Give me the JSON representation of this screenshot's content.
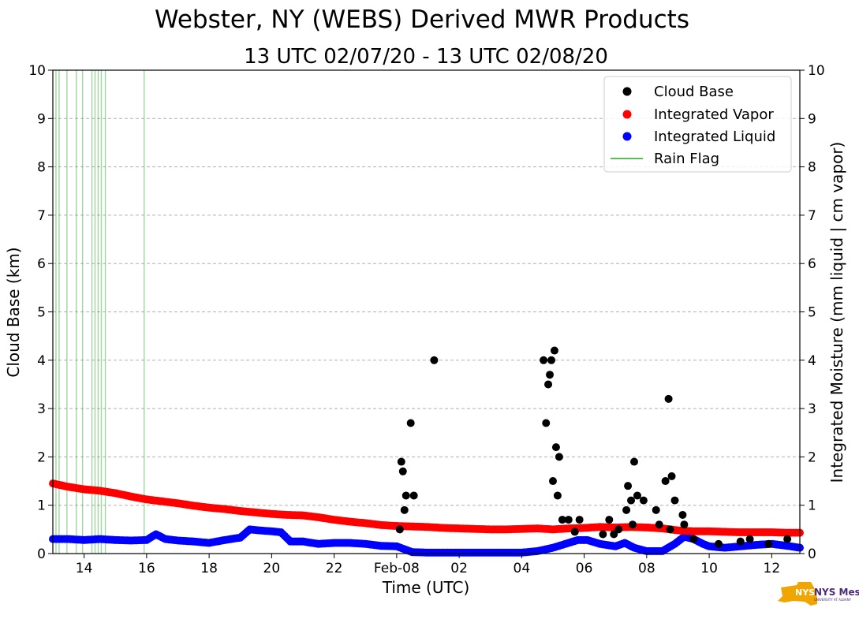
{
  "chart_data": {
    "type": "scatter",
    "title": "Webster, NY (WEBS) Derived MWR Products",
    "subtitle": "13 UTC 02/07/20 - 13 UTC 02/08/20",
    "xlabel": "Time (UTC)",
    "ylabel": "Cloud Base (km)",
    "y2label": "Integrated Moisture (mm liquid | cm vapor)",
    "xlim": [
      13.0,
      36.9
    ],
    "ylim": [
      0,
      10
    ],
    "y2lim": [
      0,
      10
    ],
    "grid": true,
    "legend_position": "top-right",
    "x_ticks": [
      {
        "value": 14,
        "label": "14"
      },
      {
        "value": 16,
        "label": "16"
      },
      {
        "value": 18,
        "label": "18"
      },
      {
        "value": 20,
        "label": "20"
      },
      {
        "value": 22,
        "label": "22"
      },
      {
        "value": 24,
        "label": "Feb-08"
      },
      {
        "value": 26,
        "label": "02"
      },
      {
        "value": 28,
        "label": "04"
      },
      {
        "value": 30,
        "label": "06"
      },
      {
        "value": 32,
        "label": "08"
      },
      {
        "value": 34,
        "label": "10"
      },
      {
        "value": 36,
        "label": "12"
      }
    ],
    "y_ticks": [
      "0",
      "1",
      "2",
      "3",
      "4",
      "5",
      "6",
      "7",
      "8",
      "9",
      "10"
    ],
    "y2_ticks": [
      "0",
      "1",
      "2",
      "3",
      "4",
      "5",
      "6",
      "7",
      "8",
      "9",
      "10"
    ],
    "series": [
      {
        "name": "Cloud Base",
        "color": "#000000",
        "x": [
          24.1,
          24.15,
          24.2,
          24.25,
          24.3,
          24.45,
          24.55,
          25.2,
          28.7,
          28.78,
          28.85,
          28.9,
          28.95,
          29.0,
          29.05,
          29.1,
          29.15,
          29.2,
          29.3,
          29.5,
          29.7,
          29.85,
          30.6,
          30.8,
          30.95,
          31.1,
          31.35,
          31.4,
          31.5,
          31.55,
          31.6,
          31.7,
          31.9,
          32.3,
          32.4,
          32.6,
          32.7,
          32.75,
          32.8,
          32.9,
          33.15,
          33.2,
          33.5,
          34.3,
          35.0,
          35.3,
          35.9,
          36.5
        ],
        "y": [
          0.5,
          1.9,
          1.7,
          0.9,
          1.2,
          2.7,
          1.2,
          4.0,
          4.0,
          2.7,
          3.5,
          3.7,
          4.0,
          1.5,
          4.2,
          2.2,
          1.2,
          2.0,
          0.7,
          0.7,
          0.45,
          0.7,
          0.4,
          0.7,
          0.4,
          0.5,
          0.9,
          1.4,
          1.1,
          0.6,
          1.9,
          1.2,
          1.1,
          0.9,
          0.6,
          1.5,
          3.2,
          0.5,
          1.6,
          1.1,
          0.8,
          0.6,
          0.3,
          0.2,
          0.25,
          0.3,
          0.2,
          0.3
        ]
      },
      {
        "name": "Integrated Vapor",
        "color": "#ff0000",
        "x": [
          13.0,
          13.5,
          14.0,
          14.5,
          15.0,
          15.5,
          16.0,
          16.5,
          17.0,
          17.5,
          18.0,
          18.5,
          19.0,
          19.5,
          20.0,
          20.5,
          21.0,
          21.5,
          22.0,
          22.5,
          23.0,
          23.5,
          24.0,
          24.5,
          25.0,
          25.5,
          26.0,
          26.5,
          27.0,
          27.5,
          28.0,
          28.5,
          29.0,
          29.5,
          30.0,
          30.5,
          31.0,
          31.5,
          32.0,
          32.5,
          33.0,
          33.5,
          34.0,
          34.5,
          35.0,
          35.5,
          36.0,
          36.5,
          36.9
        ],
        "y": [
          1.45,
          1.38,
          1.33,
          1.3,
          1.25,
          1.18,
          1.12,
          1.08,
          1.04,
          0.99,
          0.95,
          0.92,
          0.88,
          0.85,
          0.82,
          0.8,
          0.79,
          0.75,
          0.7,
          0.66,
          0.63,
          0.59,
          0.57,
          0.56,
          0.55,
          0.53,
          0.52,
          0.51,
          0.5,
          0.5,
          0.51,
          0.52,
          0.5,
          0.52,
          0.53,
          0.55,
          0.54,
          0.55,
          0.54,
          0.52,
          0.48,
          0.46,
          0.46,
          0.45,
          0.44,
          0.44,
          0.44,
          0.43,
          0.43
        ]
      },
      {
        "name": "Integrated Liquid",
        "color": "#0000ff",
        "x": [
          13.0,
          13.5,
          14.0,
          14.5,
          15.0,
          15.5,
          16.0,
          16.3,
          16.6,
          17.0,
          17.5,
          18.0,
          18.5,
          19.0,
          19.3,
          19.6,
          20.0,
          20.3,
          20.6,
          21.0,
          21.5,
          22.0,
          22.5,
          23.0,
          23.5,
          24.0,
          24.5,
          25.0,
          26.0,
          27.0,
          28.0,
          28.5,
          29.0,
          29.5,
          29.8,
          30.1,
          30.5,
          31.0,
          31.3,
          31.6,
          32.0,
          32.5,
          32.9,
          33.2,
          33.5,
          33.8,
          34.0,
          34.5,
          35.0,
          35.5,
          36.0,
          36.5,
          36.9
        ],
        "y": [
          0.3,
          0.3,
          0.28,
          0.3,
          0.28,
          0.27,
          0.28,
          0.4,
          0.3,
          0.27,
          0.25,
          0.22,
          0.28,
          0.33,
          0.5,
          0.48,
          0.46,
          0.44,
          0.25,
          0.25,
          0.2,
          0.22,
          0.22,
          0.2,
          0.16,
          0.15,
          0.03,
          0.02,
          0.02,
          0.02,
          0.02,
          0.05,
          0.12,
          0.22,
          0.28,
          0.28,
          0.2,
          0.15,
          0.22,
          0.12,
          0.05,
          0.05,
          0.2,
          0.35,
          0.3,
          0.2,
          0.15,
          0.12,
          0.15,
          0.18,
          0.2,
          0.16,
          0.12
        ]
      }
    ],
    "rain_flag": {
      "name": "Rain Flag",
      "color": "#2ca02c",
      "x": [
        13.1,
        13.2,
        13.45,
        13.75,
        13.95,
        14.25,
        14.35,
        14.45,
        14.55,
        14.68,
        15.92
      ]
    }
  },
  "logo": {
    "text": "NYS Mesonet",
    "subtext": "UNIVERSITY AT ALBANY"
  }
}
